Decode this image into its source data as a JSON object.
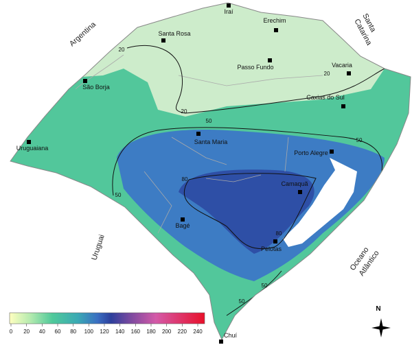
{
  "cities": [
    "Iraí",
    "Erechim",
    "Santa Rosa",
    "Passo Fundo",
    "Vacaria",
    "São Borja",
    "Caxias do Sul",
    "Santa Maria",
    "Uruguaiana",
    "Porto Alegre",
    "Camaquã",
    "Bagé",
    "Pelotas",
    "Chuí"
  ],
  "regions": {
    "argentina": "Argentina",
    "santa_catarina": [
      "Santa",
      "Catarina"
    ],
    "uruguai": "Uruguai",
    "oceano_atlantico": [
      "Oceano",
      "Atlântico"
    ]
  },
  "contour_labels": [
    20,
    20,
    20,
    50,
    50,
    50,
    50,
    50,
    80,
    80
  ],
  "colorbar": {
    "ticks": [
      0,
      20,
      40,
      60,
      80,
      100,
      120,
      140,
      160,
      180,
      200,
      220,
      240
    ]
  },
  "compass": "N"
}
